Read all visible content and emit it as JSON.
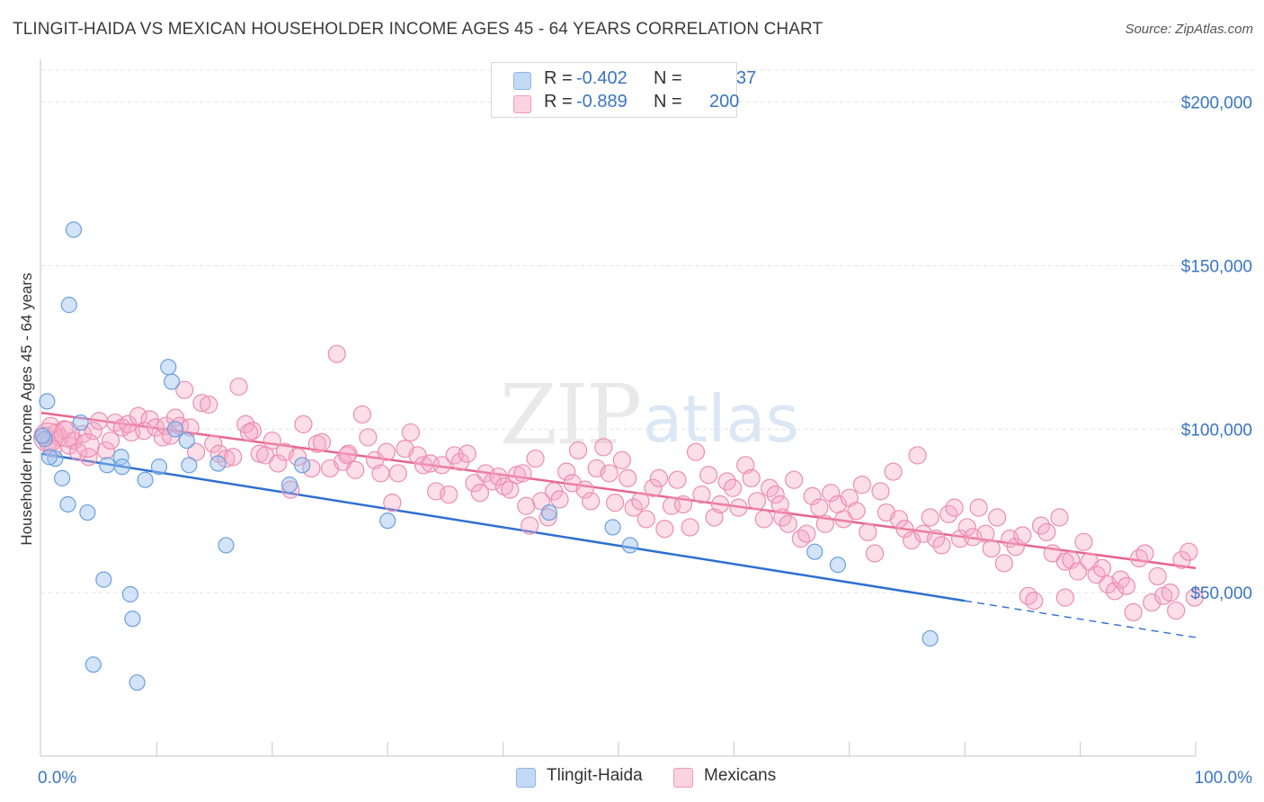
{
  "title": "TLINGIT-HAIDA VS MEXICAN HOUSEHOLDER INCOME AGES 45 - 64 YEARS CORRELATION CHART",
  "source": "Source: ZipAtlas.com",
  "watermark": "ZIPatlas",
  "legend": {
    "r_label": "R =",
    "n_label": "N =",
    "series": [
      {
        "name": "Tlingit-Haida",
        "r": "-0.402",
        "n": "37",
        "color": "#9ec2ef"
      },
      {
        "name": "Mexicans",
        "r": "-0.889",
        "n": "200",
        "color": "#f5a9c3"
      }
    ]
  },
  "chart_data": {
    "type": "scatter",
    "xlabel": "",
    "ylabel": "Householder Income Ages 45 - 64 years",
    "xlim": [
      0,
      100
    ],
    "ylim": [
      0,
      212000
    ],
    "x_tick_labels": [
      "0.0%",
      "100.0%"
    ],
    "y_ticks": [
      50000,
      100000,
      150000,
      200000
    ],
    "y_tick_labels": [
      "$50,000",
      "$100,000",
      "$150,000",
      "$200,000"
    ],
    "grid": true,
    "legend_position": "top-center",
    "series": [
      {
        "name": "Tlingit-Haida",
        "color": "#9ec2ef",
        "line_color": "#2e6fd1",
        "trend": {
          "x0": 0,
          "y0": 92500,
          "x1": 80,
          "y1": 47500,
          "dash_to_x": 100,
          "dash_to_y": 36300
        },
        "points": [
          [
            0.3,
            97000
          ],
          [
            0.5,
            108500
          ],
          [
            1.2,
            91000
          ],
          [
            1.8,
            85000
          ],
          [
            2.3,
            77000
          ],
          [
            2.4,
            138000
          ],
          [
            2.8,
            161000
          ],
          [
            3.4,
            102000
          ],
          [
            4.0,
            74500
          ],
          [
            4.5,
            28000
          ],
          [
            5.4,
            54000
          ],
          [
            5.7,
            89000
          ],
          [
            6.9,
            91500
          ],
          [
            7.0,
            88500
          ],
          [
            7.7,
            49500
          ],
          [
            7.9,
            42000
          ],
          [
            8.3,
            22500
          ],
          [
            9.0,
            84500
          ],
          [
            10.2,
            88500
          ],
          [
            11.0,
            119000
          ],
          [
            11.3,
            114500
          ],
          [
            11.6,
            100000
          ],
          [
            12.6,
            96500
          ],
          [
            12.8,
            89000
          ],
          [
            15.3,
            89500
          ],
          [
            16.0,
            64500
          ],
          [
            21.5,
            83000
          ],
          [
            22.6,
            89000
          ],
          [
            30.0,
            72000
          ],
          [
            44.0,
            74500
          ],
          [
            49.5,
            70000
          ],
          [
            51.0,
            64500
          ],
          [
            67.0,
            62500
          ],
          [
            69.0,
            58500
          ],
          [
            77.0,
            36000
          ],
          [
            0.1,
            98000
          ],
          [
            0.7,
            91500
          ]
        ]
      },
      {
        "name": "Mexicans",
        "color": "#f5a9c3",
        "line_color": "#e8648f",
        "trend": {
          "x0": 0,
          "y0": 105000,
          "x1": 100,
          "y1": 57500
        },
        "points": [
          [
            0.3,
            98000
          ],
          [
            0.6,
            96000
          ],
          [
            0.8,
            101000
          ],
          [
            1.0,
            94000
          ],
          [
            1.3,
            99000
          ],
          [
            1.6,
            97500
          ],
          [
            2.0,
            100000
          ],
          [
            2.4,
            95000
          ],
          [
            2.8,
            96500
          ],
          [
            3.2,
            93000
          ],
          [
            3.6,
            98500
          ],
          [
            4.1,
            91500
          ],
          [
            4.5,
            99500
          ],
          [
            5.0,
            102500
          ],
          [
            5.6,
            93500
          ],
          [
            6.0,
            96500
          ],
          [
            6.4,
            102000
          ],
          [
            7.0,
            100500
          ],
          [
            7.5,
            101500
          ],
          [
            7.8,
            99000
          ],
          [
            8.4,
            104000
          ],
          [
            8.9,
            99500
          ],
          [
            9.4,
            103000
          ],
          [
            9.9,
            100500
          ],
          [
            10.5,
            97500
          ],
          [
            10.8,
            101000
          ],
          [
            11.2,
            98000
          ],
          [
            11.6,
            103500
          ],
          [
            12.0,
            101000
          ],
          [
            12.4,
            112000
          ],
          [
            12.9,
            100500
          ],
          [
            13.4,
            93000
          ],
          [
            13.9,
            108000
          ],
          [
            14.5,
            107500
          ],
          [
            14.9,
            95500
          ],
          [
            15.4,
            92500
          ],
          [
            16.0,
            91000
          ],
          [
            16.6,
            91500
          ],
          [
            17.1,
            113000
          ],
          [
            17.7,
            101500
          ],
          [
            18.3,
            99500
          ],
          [
            18.9,
            92500
          ],
          [
            19.4,
            92000
          ],
          [
            20.0,
            96500
          ],
          [
            20.5,
            89500
          ],
          [
            21.1,
            93000
          ],
          [
            21.6,
            81500
          ],
          [
            22.2,
            91500
          ],
          [
            22.7,
            101500
          ],
          [
            23.4,
            88000
          ],
          [
            23.9,
            95500
          ],
          [
            24.3,
            96000
          ],
          [
            25.0,
            88000
          ],
          [
            25.6,
            123000
          ],
          [
            26.1,
            90000
          ],
          [
            26.6,
            92500
          ],
          [
            27.2,
            87500
          ],
          [
            27.8,
            104500
          ],
          [
            28.3,
            97500
          ],
          [
            28.9,
            90500
          ],
          [
            29.4,
            86500
          ],
          [
            29.9,
            93000
          ],
          [
            30.4,
            77500
          ],
          [
            30.9,
            86500
          ],
          [
            31.5,
            94000
          ],
          [
            32.0,
            99000
          ],
          [
            32.6,
            92000
          ],
          [
            33.1,
            89000
          ],
          [
            33.7,
            89500
          ],
          [
            34.2,
            81000
          ],
          [
            34.7,
            89000
          ],
          [
            35.3,
            80000
          ],
          [
            35.8,
            92000
          ],
          [
            36.3,
            90000
          ],
          [
            36.9,
            92500
          ],
          [
            37.5,
            83500
          ],
          [
            38.0,
            80500
          ],
          [
            38.5,
            86500
          ],
          [
            39.1,
            84000
          ],
          [
            39.6,
            85500
          ],
          [
            40.1,
            82500
          ],
          [
            40.6,
            81500
          ],
          [
            41.2,
            86000
          ],
          [
            41.7,
            86500
          ],
          [
            42.3,
            70500
          ],
          [
            42.8,
            91000
          ],
          [
            43.3,
            78000
          ],
          [
            43.9,
            73000
          ],
          [
            44.4,
            81000
          ],
          [
            44.9,
            78500
          ],
          [
            45.5,
            87000
          ],
          [
            46.0,
            83500
          ],
          [
            46.5,
            93500
          ],
          [
            47.1,
            81500
          ],
          [
            47.6,
            78000
          ],
          [
            48.1,
            88000
          ],
          [
            48.7,
            94500
          ],
          [
            49.2,
            86500
          ],
          [
            49.7,
            77500
          ],
          [
            50.3,
            90500
          ],
          [
            50.8,
            85000
          ],
          [
            51.3,
            76000
          ],
          [
            51.9,
            78000
          ],
          [
            52.4,
            72500
          ],
          [
            53.0,
            82000
          ],
          [
            53.5,
            85000
          ],
          [
            54.0,
            69500
          ],
          [
            54.6,
            76500
          ],
          [
            55.1,
            84500
          ],
          [
            55.6,
            77000
          ],
          [
            56.2,
            70000
          ],
          [
            56.7,
            93000
          ],
          [
            57.2,
            80000
          ],
          [
            57.8,
            86000
          ],
          [
            58.3,
            73000
          ],
          [
            58.8,
            77000
          ],
          [
            59.4,
            84000
          ],
          [
            59.9,
            82000
          ],
          [
            60.4,
            76000
          ],
          [
            61.0,
            89000
          ],
          [
            61.5,
            85000
          ],
          [
            62.0,
            78000
          ],
          [
            62.6,
            72500
          ],
          [
            63.1,
            82000
          ],
          [
            63.6,
            80000
          ],
          [
            64.2,
            73000
          ],
          [
            64.7,
            71000
          ],
          [
            65.2,
            84500
          ],
          [
            65.8,
            66500
          ],
          [
            66.3,
            68000
          ],
          [
            66.8,
            79500
          ],
          [
            67.4,
            76000
          ],
          [
            67.9,
            71000
          ],
          [
            68.4,
            80500
          ],
          [
            69.0,
            77000
          ],
          [
            69.5,
            72500
          ],
          [
            70.0,
            79000
          ],
          [
            70.6,
            75000
          ],
          [
            71.1,
            83000
          ],
          [
            71.6,
            68500
          ],
          [
            72.2,
            62000
          ],
          [
            72.7,
            81000
          ],
          [
            73.2,
            74500
          ],
          [
            73.8,
            87000
          ],
          [
            74.3,
            72500
          ],
          [
            74.8,
            69500
          ],
          [
            75.4,
            66000
          ],
          [
            75.9,
            92000
          ],
          [
            76.4,
            68000
          ],
          [
            77.0,
            73000
          ],
          [
            77.5,
            66500
          ],
          [
            78.0,
            64500
          ],
          [
            78.6,
            74000
          ],
          [
            79.1,
            76000
          ],
          [
            79.6,
            66500
          ],
          [
            80.2,
            70000
          ],
          [
            80.7,
            67000
          ],
          [
            81.2,
            76000
          ],
          [
            81.8,
            68000
          ],
          [
            82.3,
            63500
          ],
          [
            82.8,
            73000
          ],
          [
            83.4,
            59000
          ],
          [
            83.9,
            66500
          ],
          [
            84.4,
            64000
          ],
          [
            85.0,
            67500
          ],
          [
            85.5,
            49000
          ],
          [
            86.0,
            47500
          ],
          [
            86.6,
            70500
          ],
          [
            87.1,
            68500
          ],
          [
            87.6,
            62000
          ],
          [
            88.2,
            73000
          ],
          [
            88.7,
            59500
          ],
          [
            89.2,
            60000
          ],
          [
            89.8,
            56500
          ],
          [
            90.3,
            65500
          ],
          [
            90.8,
            59500
          ],
          [
            91.4,
            55500
          ],
          [
            91.9,
            57500
          ],
          [
            92.4,
            52500
          ],
          [
            93.0,
            50500
          ],
          [
            93.5,
            54000
          ],
          [
            94.0,
            52000
          ],
          [
            94.6,
            44000
          ],
          [
            95.1,
            60500
          ],
          [
            95.6,
            62000
          ],
          [
            96.2,
            47000
          ],
          [
            96.7,
            55000
          ],
          [
            97.2,
            49000
          ],
          [
            97.8,
            50000
          ],
          [
            98.3,
            44500
          ],
          [
            98.8,
            60000
          ],
          [
            99.4,
            62500
          ],
          [
            99.9,
            48500
          ],
          [
            88.7,
            48500
          ],
          [
            64.0,
            77000
          ],
          [
            26.5,
            92000
          ],
          [
            18.0,
            99000
          ],
          [
            42.0,
            76500
          ]
        ]
      }
    ]
  }
}
